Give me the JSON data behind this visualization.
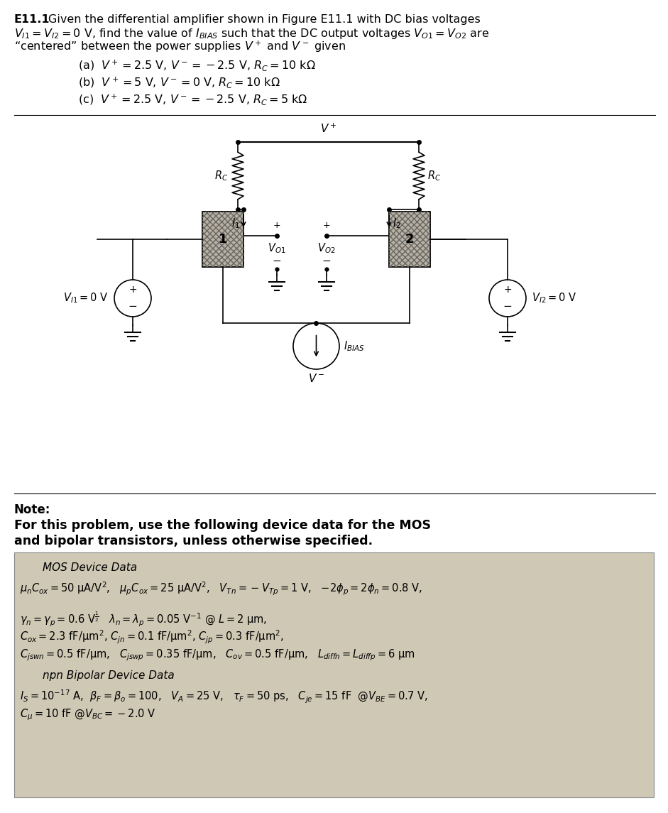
{
  "bg_color": "#ffffff",
  "box_bg": "#cfc8b4",
  "fig_width": 9.41,
  "fig_height": 11.45,
  "dpi": 100,
  "header": {
    "bold": "E11.1",
    "line1": "Given the differential amplifier shown in Figure E11.1 with DC bias voltages",
    "line2": "$V_{I1} = V_{I2} = 0$ V, find the value of $I_{BIAS}$ such that the DC output voltages $V_{O1} = V_{O2}$ are",
    "line3": "“centered” between the power supplies $V^+$ and $V^-$ given",
    "part_a": "(a)  $V^+ = 2.5$ V, $V^- = -2.5$ V, $R_C = 10$ k$\\Omega$",
    "part_b": "(b)  $V^+ = 5$ V, $V^- = 0$ V, $R_C = 10$ k$\\Omega$",
    "part_c": "(c)  $V^+ = 2.5$ V, $V^- = -2.5$ V, $R_C = 5$ k$\\Omega$"
  },
  "note": {
    "bold1": "Note:",
    "bold2": "For this problem, use the following device data for the MOS",
    "bold3": "and bipolar transistors, unless otherwise specified.",
    "mos_title": "MOS Device Data",
    "mos1": "$\\mu_n C_{ox} = 50$ μA/V$^2$,   $\\mu_p C_{ox} = 25$ μA/V$^2$,   $V_{Tn} = -V_{Tp} = 1$ V,   $-2\\phi_p = 2\\phi_n = 0.8$ V,",
    "mos2": "$\\gamma_n = \\gamma_p = 0.6$ V$^{\\frac{1}{2}}$   $\\lambda_n = \\lambda_p = 0.05$ V$^{-1}$ @ $L = 2$ μm,",
    "mos3": "$C_{ox} = 2.3$ fF/μm$^2$, $C_{jn} = 0.1$ fF/μm$^2$, $C_{jp} = 0.3$ fF/μm$^2$,",
    "mos4": "$C_{jswn} = 0.5$ fF/μm,   $C_{jswp} = 0.35$ fF/μm,   $C_{ov} = 0.5$ fF/μm,   $L_{diffn} = L_{diffp} = 6$ μm",
    "bipolar_title": "npn Bipolar Device Data",
    "bip1": "$I_S = 10^{-17}$ A,  $\\beta_F = \\beta_o = 100$,   $V_A = 25$ V,   $\\tau_F = 50$ ps,   $C_{je} = 15$ fF  @$V_{BE} = 0.7$ V,",
    "bip2": "$C_\\mu = 10$ fF @$V_{BC} = -2.0$ V"
  }
}
